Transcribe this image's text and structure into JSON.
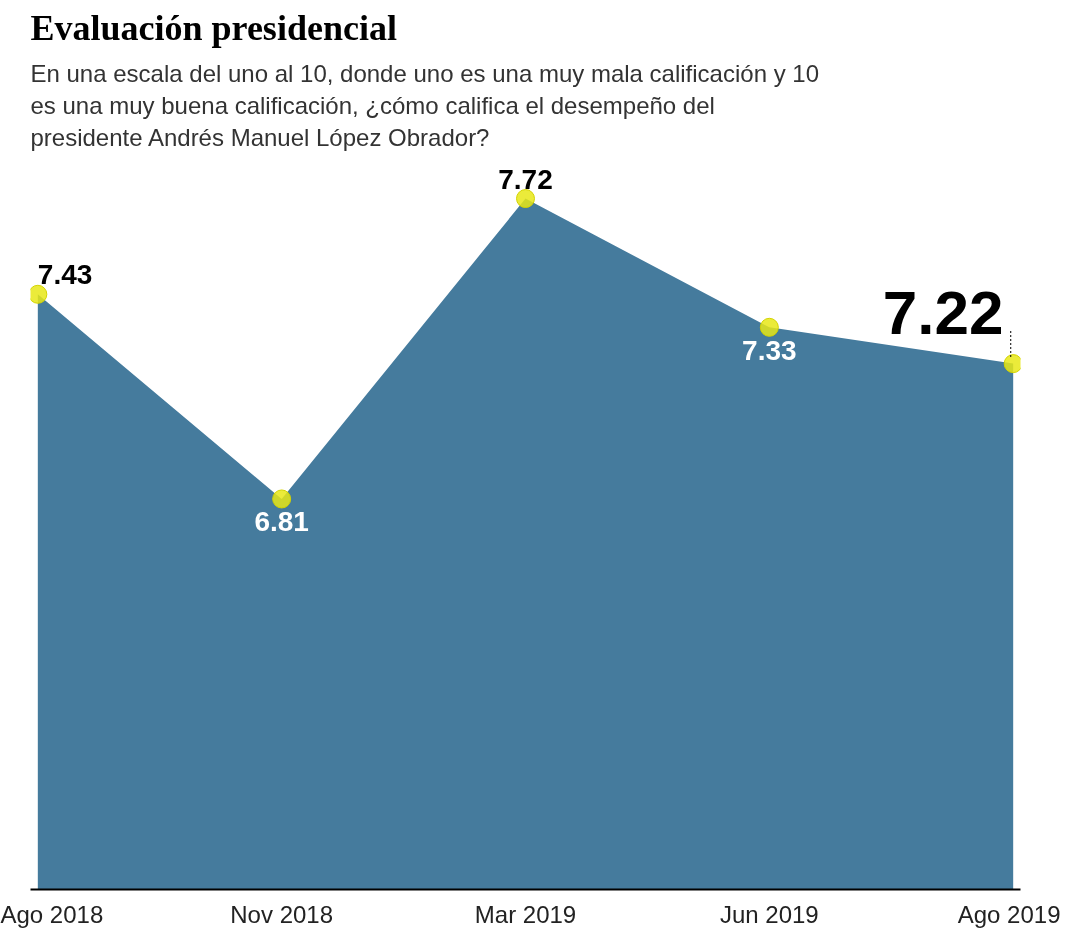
{
  "chart_data": {
    "type": "area",
    "title": "Evaluación presidencial",
    "subtitle": "En una escala del uno al 10, donde uno es una muy mala calificación y 10 es una muy buena calificación, ¿cómo califica el desempeño del presidente Andrés Manuel López Obrador?",
    "categories": [
      "Ago 2018",
      "Nov 2018",
      "Mar 2019",
      "Jun 2019",
      "Ago 2019"
    ],
    "values": [
      7.43,
      6.81,
      7.72,
      7.33,
      7.22
    ],
    "color": "#457b9d",
    "data_labels": true,
    "marker": "circle",
    "grid": false
  }
}
